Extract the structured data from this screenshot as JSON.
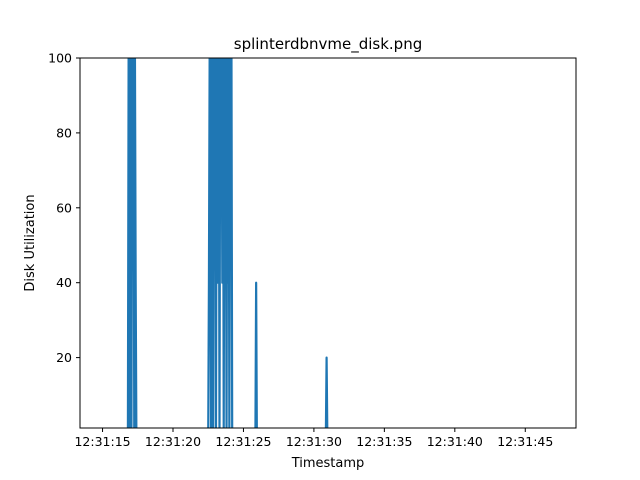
{
  "chart_data": {
    "type": "line",
    "title": "splinterdbnvme_disk.png",
    "xlabel": "Timestamp",
    "ylabel": "Disk Utilization",
    "x_type": "time",
    "xlim": [
      "12:31:13.4",
      "12:31:48.6"
    ],
    "ylim": [
      1.2,
      100
    ],
    "x_ticks": [
      "12:31:15",
      "12:31:20",
      "12:31:25",
      "12:31:30",
      "12:31:35",
      "12:31:40",
      "12:31:45"
    ],
    "y_ticks": [
      20,
      40,
      60,
      80,
      100
    ],
    "grid": false,
    "line_color": "#1f77b4",
    "series": [
      {
        "name": "",
        "x": [
          "12:31:16.8",
          "12:31:16.85",
          "12:31:16.9",
          "12:31:16.95",
          "12:31:17.0",
          "12:31:17.05",
          "12:31:17.1",
          "12:31:17.15",
          "12:31:17.2",
          "12:31:17.25",
          "12:31:17.3",
          "12:31:17.35",
          "12:31:17.4",
          "12:31:22.5",
          "12:31:22.55",
          "12:31:22.6",
          "12:31:22.65",
          "12:31:22.7",
          "12:31:22.75",
          "12:31:22.8",
          "12:31:22.85",
          "12:31:22.9",
          "12:31:22.95",
          "12:31:23.0",
          "12:31:23.05",
          "12:31:23.1",
          "12:31:23.15",
          "12:31:23.2",
          "12:31:23.25",
          "12:31:23.3",
          "12:31:23.35",
          "12:31:23.4",
          "12:31:23.45",
          "12:31:23.5",
          "12:31:23.55",
          "12:31:23.6",
          "12:31:23.65",
          "12:31:23.7",
          "12:31:23.75",
          "12:31:23.8",
          "12:31:23.85",
          "12:31:23.9",
          "12:31:23.95",
          "12:31:24.0",
          "12:31:24.05",
          "12:31:24.1",
          "12:31:24.15",
          "12:31:24.2",
          "12:31:25.85",
          "12:31:25.9",
          "12:31:25.95",
          "12:31:30.85",
          "12:31:30.9",
          "12:31:30.95"
        ],
        "values": [
          0,
          100,
          0,
          100,
          100,
          0,
          100,
          80,
          100,
          0,
          100,
          40,
          0,
          0,
          40,
          100,
          80,
          0,
          100,
          100,
          0,
          100,
          50,
          100,
          0,
          100,
          80,
          40,
          100,
          0,
          100,
          80,
          100,
          40,
          100,
          0,
          100,
          100,
          80,
          0,
          100,
          40,
          100,
          0,
          100,
          80,
          100,
          0,
          0,
          40,
          0,
          0,
          20,
          0
        ]
      }
    ]
  }
}
